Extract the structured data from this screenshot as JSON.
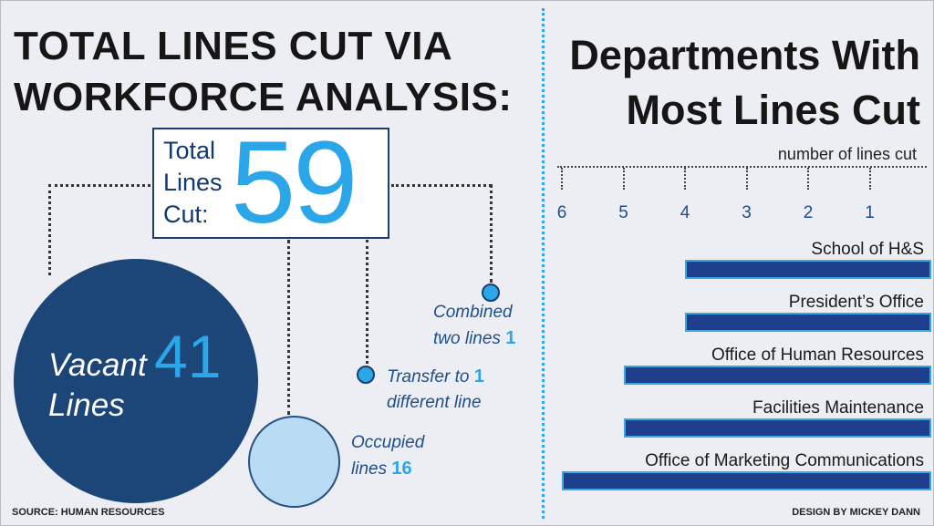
{
  "left_title": "TOTAL LINES CUT VIA WORKFORCE ANALYSIS:",
  "right_title": "Departments With Most Lines Cut",
  "total": {
    "label": "Total Lines Cut:",
    "value": "59"
  },
  "vacant": {
    "label_1": "Vacant",
    "label_2": "Lines",
    "value": "41"
  },
  "occupied": {
    "label_1": "Occupied",
    "label_2": "lines",
    "value": "16"
  },
  "transfer": {
    "label_1": "Transfer to",
    "label_2": "different line",
    "value": "1"
  },
  "combined": {
    "label_1": "Combined",
    "label_2": "two lines",
    "value": "1"
  },
  "source": "SOURCE: HUMAN RESOURCES",
  "credit": "DESIGN BY MICKEY DANN",
  "colors": {
    "dark_blue": "#1b4677",
    "bright_blue": "#2ba6e8",
    "light_blue": "#b7dcf3",
    "bar_fill": "#1f3f8c",
    "bar_outline": "#39a6e6"
  },
  "chart_data": [
    {
      "type": "pie",
      "title": "",
      "total": 59,
      "categories": [
        "Vacant Lines",
        "Occupied lines",
        "Transfer to different line",
        "Combined two lines"
      ],
      "values": [
        41,
        16,
        1,
        1
      ]
    },
    {
      "type": "bar",
      "orientation": "horizontal",
      "xaxis_direction": "reversed",
      "title": "Departments With Most Lines Cut",
      "xlabel": "number of lines cut",
      "xlim": [
        0,
        6
      ],
      "xticks": [
        "6",
        "5",
        "4",
        "3",
        "2",
        "1"
      ],
      "grid": false,
      "categories": [
        "School of H&S",
        "President’s Office",
        "Office of Human Resources",
        "Facilities Maintenance",
        "Office of Marketing Communications"
      ],
      "values": [
        4,
        4,
        5,
        5,
        6
      ]
    }
  ]
}
